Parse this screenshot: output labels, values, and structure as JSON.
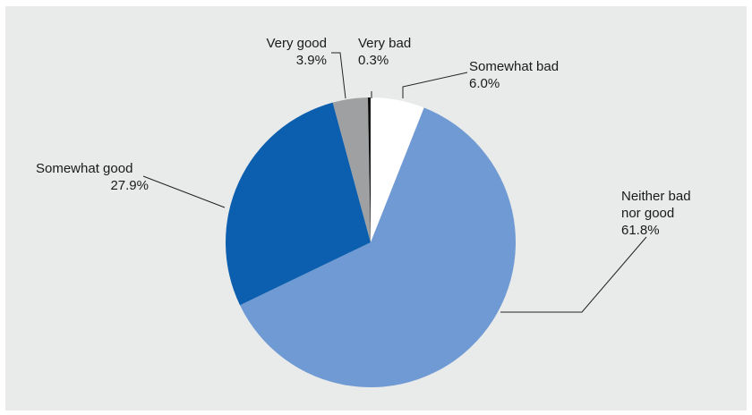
{
  "chart_data": {
    "type": "pie",
    "start_angle_deg": 0,
    "direction": "clockwise",
    "legend": "none",
    "slices": [
      {
        "label": "Somewhat bad",
        "value": 6.0,
        "value_label": "6.0%",
        "color": "#ffffff"
      },
      {
        "label": "Neither bad nor good",
        "label_lines": [
          "Neither bad",
          "nor good"
        ],
        "value": 61.8,
        "value_label": "61.8%",
        "color": "#6f9ad3"
      },
      {
        "label": "Somewhat good",
        "value": 27.9,
        "value_label": "27.9%",
        "color": "#0c5fae"
      },
      {
        "label": "Very good",
        "value": 3.9,
        "value_label": "3.9%",
        "color": "#9ea0a1"
      },
      {
        "label": "Very bad",
        "value": 0.3,
        "value_label": "0.3%",
        "color": "#111111"
      }
    ]
  }
}
